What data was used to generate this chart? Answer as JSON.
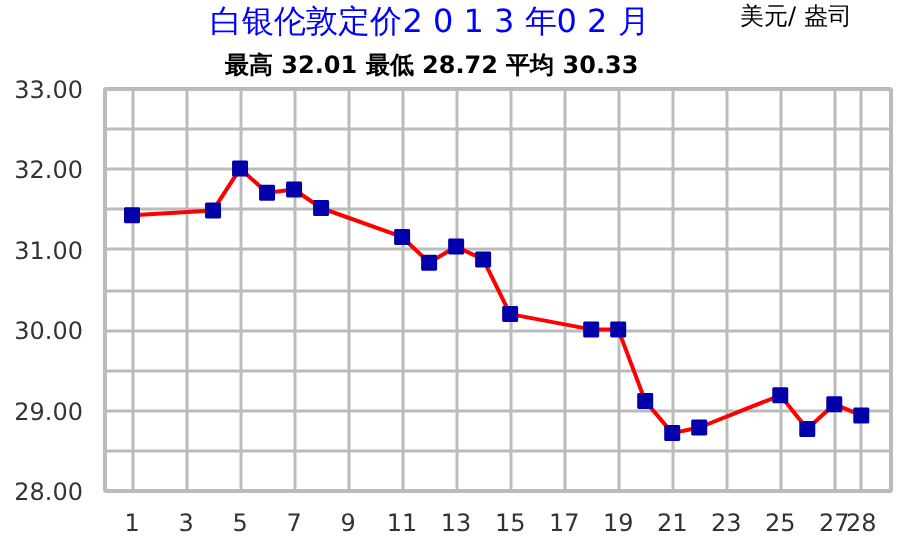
{
  "chart_data": {
    "type": "line",
    "title": "白银伦敦定价2 0 1 3 年0 2 月",
    "subtitle": "最高  32.01     最低  28.72     平均  30.33",
    "annotations": [
      "美元/ 盎司"
    ],
    "x": [
      1,
      4,
      5,
      6,
      7,
      8,
      11,
      12,
      13,
      14,
      15,
      18,
      19,
      20,
      21,
      22,
      25,
      26,
      27,
      28
    ],
    "series": [
      {
        "color": "#ff0000",
        "values": [
          31.43,
          31.49,
          32.01,
          31.71,
          31.75,
          31.52,
          31.16,
          30.84,
          31.04,
          30.88,
          30.2,
          30.01,
          30.01,
          29.12,
          28.72,
          28.79,
          29.19,
          28.77,
          29.08,
          28.94
        ],
        "colors": [
          "#0000aa",
          "#0000aa",
          "#0000aa",
          "#0000aa",
          "#0000aa",
          "#0000aa",
          "#0000aa",
          "#0000aa",
          "#0000aa",
          "#0000aa",
          "#0000aa",
          "#0000aa",
          "#0000aa",
          "#0000aa",
          "#0000aa",
          "#0000aa",
          "#0000aa",
          "#0000aa",
          "#0000aa",
          "#0000aa"
        ]
      }
    ],
    "xlim": [
      0,
      29.1
    ],
    "ylim": [
      28,
      33
    ],
    "xticks": [
      1,
      3,
      5,
      7,
      9,
      11,
      13,
      15,
      17,
      19,
      21,
      23,
      25,
      27,
      28
    ],
    "yticks": [
      {
        "value": 28,
        "label": "28.00"
      },
      {
        "value": 28.5,
        "label": null
      },
      {
        "value": 29,
        "label": "29.00"
      },
      {
        "value": 29.5,
        "label": null
      },
      {
        "value": 30,
        "label": "30.00"
      },
      {
        "value": 30.5,
        "label": null
      },
      {
        "value": 31,
        "label": "31.00"
      },
      {
        "value": 31.5,
        "label": null
      },
      {
        "value": 32,
        "label": "32.00"
      },
      {
        "value": 32.5,
        "label": null
      },
      {
        "value": 33,
        "label": "33.00"
      }
    ],
    "grid": true,
    "marker": "square",
    "line_style": "solid"
  }
}
